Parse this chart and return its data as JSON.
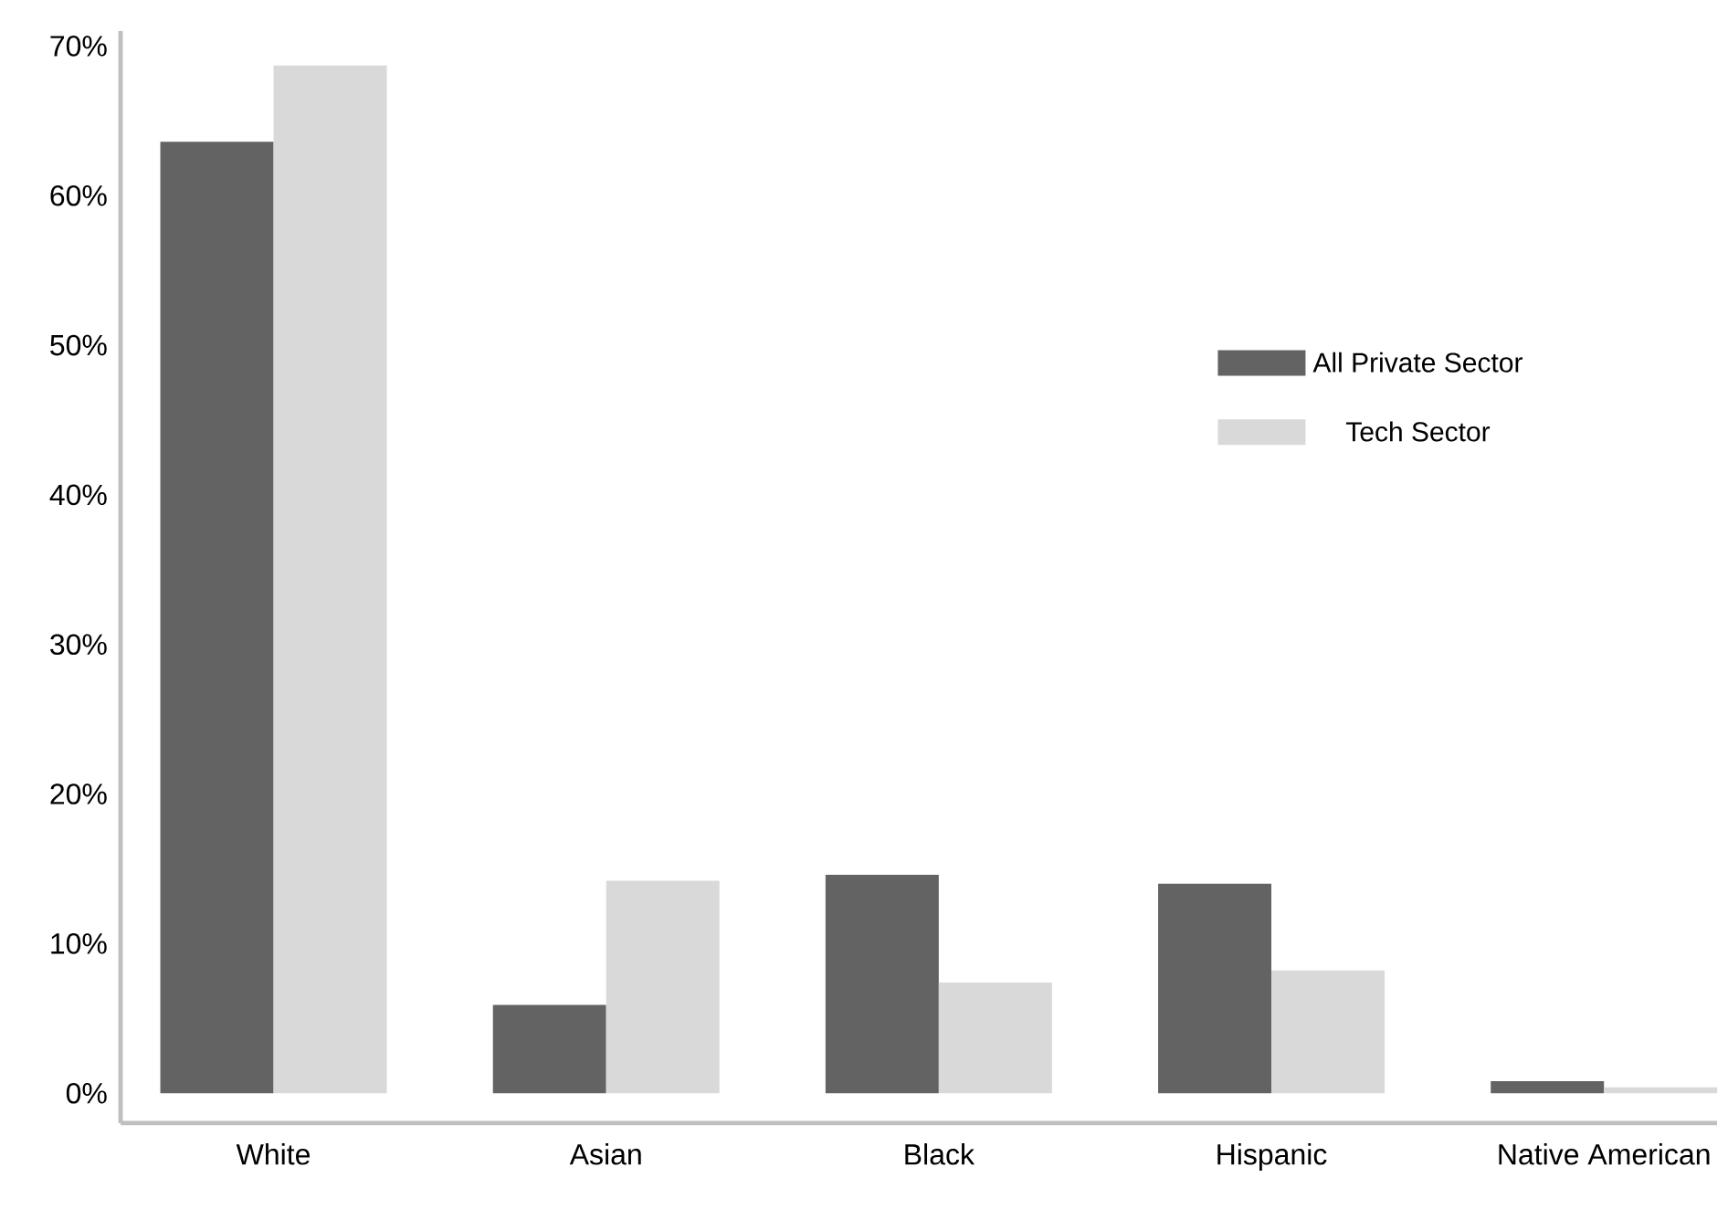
{
  "chart_data": {
    "type": "bar",
    "categories": [
      "White",
      "Asian",
      "Black",
      "Hispanic",
      "Native American"
    ],
    "series": [
      {
        "name": "All Private Sector",
        "color": "#636363",
        "values": [
          63.6,
          5.9,
          14.6,
          14.0,
          0.8
        ]
      },
      {
        "name": "Tech Sector",
        "color": "#d9d9d9",
        "values": [
          68.7,
          14.2,
          7.4,
          8.2,
          0.4
        ]
      }
    ],
    "ylim": [
      -2,
      71
    ],
    "yticks": [
      {
        "value": 0,
        "label": "0%"
      },
      {
        "value": 10,
        "label": "10%"
      },
      {
        "value": 20,
        "label": "20%"
      },
      {
        "value": 30,
        "label": "30%"
      },
      {
        "value": 40,
        "label": "40%"
      },
      {
        "value": 50,
        "label": "50%"
      },
      {
        "value": 60,
        "label": "60%"
      },
      {
        "value": 70,
        "label": "70%"
      }
    ],
    "legend": "right"
  }
}
